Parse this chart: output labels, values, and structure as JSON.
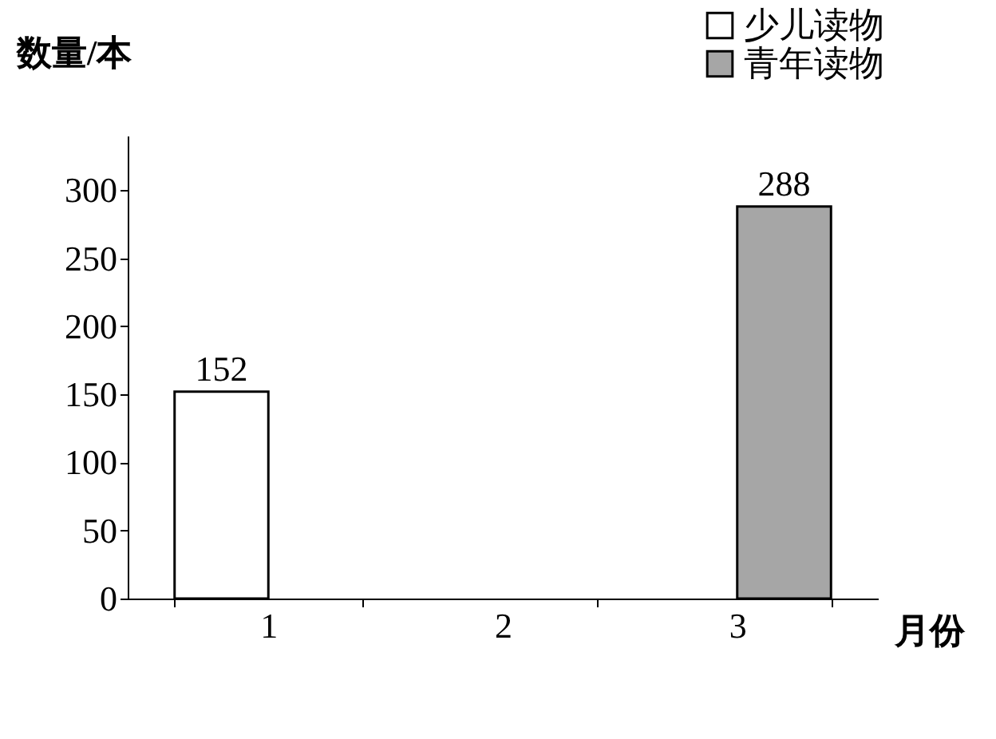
{
  "chart_data": {
    "type": "bar",
    "xlabel": "月份",
    "ylabel": "数量/本",
    "categories": [
      "1",
      "2",
      "3"
    ],
    "series": [
      {
        "name": "少儿读物",
        "color": "#ffffff",
        "values": [
          152,
          null,
          null
        ]
      },
      {
        "name": "青年读物",
        "color": "#a6a6a6",
        "values": [
          null,
          null,
          288
        ]
      }
    ],
    "ylim": [
      0,
      340
    ],
    "yticks": [
      0,
      50,
      100,
      150,
      200,
      250,
      300
    ],
    "data_labels": true,
    "legend": "top right",
    "grid": false
  }
}
